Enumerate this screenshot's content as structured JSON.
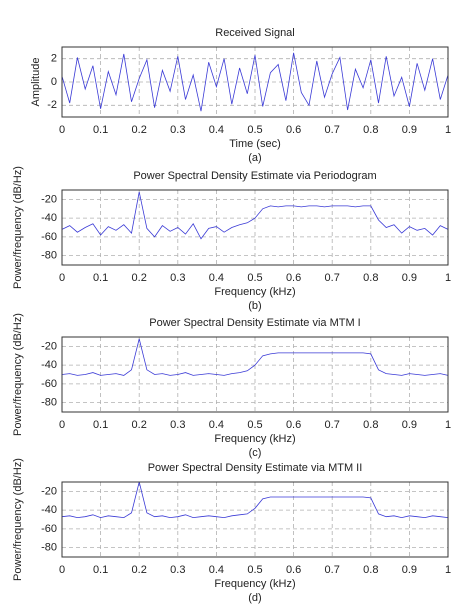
{
  "chart_data": [
    {
      "type": "line",
      "title": "Received Signal",
      "xlabel": "Time (sec)",
      "ylabel": "Amplitude",
      "caption": "(a)",
      "xlim": [
        0,
        1
      ],
      "xticks": [
        0,
        0.1,
        0.2,
        0.3,
        0.4,
        0.5,
        0.6,
        0.7,
        0.8,
        0.9,
        1
      ],
      "ylim": [
        -3,
        3
      ],
      "yticks": [
        -2,
        0,
        2
      ],
      "grid": true,
      "color": "#3a3ad6",
      "x": [
        0,
        0.02,
        0.04,
        0.06,
        0.08,
        0.1,
        0.12,
        0.14,
        0.16,
        0.18,
        0.2,
        0.22,
        0.24,
        0.26,
        0.28,
        0.3,
        0.32,
        0.34,
        0.36,
        0.38,
        0.4,
        0.42,
        0.44,
        0.46,
        0.48,
        0.5,
        0.52,
        0.54,
        0.56,
        0.58,
        0.6,
        0.62,
        0.64,
        0.66,
        0.68,
        0.7,
        0.72,
        0.74,
        0.76,
        0.78,
        0.8,
        0.82,
        0.84,
        0.86,
        0.88,
        0.9,
        0.92,
        0.94,
        0.96,
        0.98,
        1
      ],
      "values": [
        0.5,
        -1.8,
        2.1,
        -0.6,
        1.4,
        -2.3,
        0.9,
        -1.1,
        2.4,
        -1.7,
        0.3,
        1.9,
        -2.2,
        1.0,
        -0.8,
        2.2,
        -1.5,
        0.6,
        -2.5,
        1.7,
        -0.4,
        2.0,
        -1.9,
        1.2,
        -1.0,
        2.3,
        -2.1,
        0.8,
        1.5,
        -1.6,
        2.5,
        -0.9,
        -2.0,
        1.8,
        -1.3,
        0.7,
        2.1,
        -2.4,
        1.1,
        -0.5,
        1.9,
        -1.8,
        2.2,
        -1.2,
        0.4,
        -2.1,
        1.6,
        -0.7,
        2.0,
        -1.5,
        0.6
      ]
    },
    {
      "type": "line",
      "title": "Power Spectral Density Estimate via Periodogram",
      "xlabel": "Frequency (kHz)",
      "ylabel": "Power/frequency (dB/Hz)",
      "caption": "(b)",
      "xlim": [
        0,
        1
      ],
      "xticks": [
        0,
        0.1,
        0.2,
        0.3,
        0.4,
        0.5,
        0.6,
        0.7,
        0.8,
        0.9,
        1
      ],
      "ylim": [
        -90,
        -10
      ],
      "yticks": [
        -80,
        -60,
        -40,
        -20
      ],
      "grid": true,
      "color": "#3a3ad6",
      "x": [
        0,
        0.02,
        0.04,
        0.06,
        0.08,
        0.1,
        0.12,
        0.14,
        0.16,
        0.18,
        0.2,
        0.22,
        0.24,
        0.26,
        0.28,
        0.3,
        0.32,
        0.34,
        0.36,
        0.38,
        0.4,
        0.42,
        0.44,
        0.46,
        0.48,
        0.5,
        0.52,
        0.54,
        0.56,
        0.58,
        0.6,
        0.62,
        0.64,
        0.66,
        0.68,
        0.7,
        0.72,
        0.74,
        0.76,
        0.78,
        0.8,
        0.82,
        0.84,
        0.86,
        0.88,
        0.9,
        0.92,
        0.94,
        0.96,
        0.98,
        1
      ],
      "values": [
        -52,
        -48,
        -55,
        -50,
        -46,
        -58,
        -49,
        -53,
        -47,
        -56,
        -12,
        -51,
        -60,
        -48,
        -54,
        -50,
        -57,
        -46,
        -62,
        -51,
        -49,
        -55,
        -50,
        -47,
        -45,
        -40,
        -30,
        -27,
        -28,
        -27,
        -27,
        -28,
        -27,
        -27,
        -28,
        -27,
        -27,
        -27,
        -28,
        -27,
        -27,
        -42,
        -50,
        -47,
        -56,
        -49,
        -53,
        -51,
        -58,
        -48,
        -52
      ]
    },
    {
      "type": "line",
      "title": "Power Spectral Density Estimate via MTM I",
      "xlabel": "Frequency (kHz)",
      "ylabel": "Power/frequency (dB/Hz)",
      "caption": "(c)",
      "xlim": [
        0,
        1
      ],
      "xticks": [
        0,
        0.1,
        0.2,
        0.3,
        0.4,
        0.5,
        0.6,
        0.7,
        0.8,
        0.9,
        1
      ],
      "ylim": [
        -90,
        -10
      ],
      "yticks": [
        -80,
        -60,
        -40,
        -20
      ],
      "grid": true,
      "color": "#3a3ad6",
      "x": [
        0,
        0.02,
        0.04,
        0.06,
        0.08,
        0.1,
        0.12,
        0.14,
        0.16,
        0.18,
        0.2,
        0.22,
        0.24,
        0.26,
        0.28,
        0.3,
        0.32,
        0.34,
        0.36,
        0.38,
        0.4,
        0.42,
        0.44,
        0.46,
        0.48,
        0.5,
        0.52,
        0.54,
        0.56,
        0.58,
        0.6,
        0.62,
        0.64,
        0.66,
        0.68,
        0.7,
        0.72,
        0.74,
        0.76,
        0.78,
        0.8,
        0.82,
        0.84,
        0.86,
        0.88,
        0.9,
        0.92,
        0.94,
        0.96,
        0.98,
        1
      ],
      "values": [
        -50,
        -49,
        -51,
        -50,
        -48,
        -51,
        -50,
        -49,
        -51,
        -45,
        -12,
        -45,
        -50,
        -49,
        -51,
        -50,
        -48,
        -51,
        -50,
        -49,
        -50,
        -51,
        -49,
        -48,
        -46,
        -40,
        -30,
        -28,
        -27,
        -27,
        -27,
        -27,
        -27,
        -27,
        -27,
        -27,
        -27,
        -27,
        -27,
        -27,
        -28,
        -45,
        -49,
        -50,
        -51,
        -49,
        -50,
        -51,
        -50,
        -49,
        -51
      ]
    },
    {
      "type": "line",
      "title": "Power Spectral Density Estimate via MTM II",
      "xlabel": "Frequency (kHz)",
      "ylabel": "Power/frequency (dB/Hz)",
      "caption": "(d)",
      "xlim": [
        0,
        1
      ],
      "xticks": [
        0,
        0.1,
        0.2,
        0.3,
        0.4,
        0.5,
        0.6,
        0.7,
        0.8,
        0.9,
        1
      ],
      "ylim": [
        -90,
        -10
      ],
      "yticks": [
        -80,
        -60,
        -40,
        -20
      ],
      "grid": true,
      "color": "#3a3ad6",
      "x": [
        0,
        0.02,
        0.04,
        0.06,
        0.08,
        0.1,
        0.12,
        0.14,
        0.16,
        0.18,
        0.2,
        0.22,
        0.24,
        0.26,
        0.28,
        0.3,
        0.32,
        0.34,
        0.36,
        0.38,
        0.4,
        0.42,
        0.44,
        0.46,
        0.48,
        0.5,
        0.52,
        0.54,
        0.56,
        0.58,
        0.6,
        0.62,
        0.64,
        0.66,
        0.68,
        0.7,
        0.72,
        0.74,
        0.76,
        0.78,
        0.8,
        0.82,
        0.84,
        0.86,
        0.88,
        0.9,
        0.92,
        0.94,
        0.96,
        0.98,
        1
      ],
      "values": [
        -47,
        -46,
        -48,
        -47,
        -45,
        -48,
        -46,
        -47,
        -48,
        -43,
        -10,
        -43,
        -47,
        -46,
        -48,
        -47,
        -45,
        -48,
        -47,
        -46,
        -47,
        -48,
        -46,
        -45,
        -44,
        -38,
        -28,
        -26,
        -26,
        -26,
        -26,
        -26,
        -26,
        -26,
        -26,
        -26,
        -26,
        -26,
        -26,
        -26,
        -27,
        -44,
        -47,
        -46,
        -48,
        -46,
        -47,
        -48,
        -46,
        -47,
        -48
      ]
    }
  ]
}
